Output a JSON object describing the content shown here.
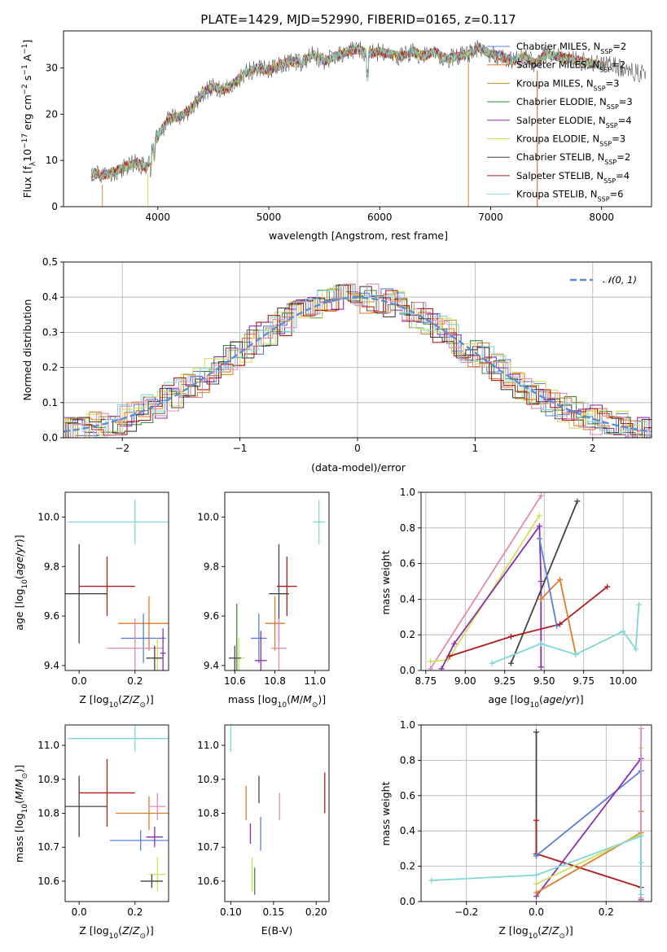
{
  "colors": {
    "chabrier_miles": "#5b7fd8",
    "salpeter_miles": "#e07b2a",
    "kroupa_miles": "#d98a2a",
    "chabrier_elodie": "#3f8a3f",
    "salpeter_elodie": "#8a2fb0",
    "kroupa_elodie": "#cde25a",
    "chabrier_stelib": "#444444",
    "salpeter_stelib": "#b01d1d",
    "kroupa_stelib": "#7fd8d8",
    "pink": "#e08ab8",
    "normal": "#5a8fd6"
  },
  "chart_data": [
    {
      "id": "spectrum",
      "type": "line",
      "title": "PLATE=1429, MJD=52990, FIBERID=0165, z=0.117",
      "xlabel": "wavelength [Angstrom, rest frame]",
      "ylabel": "Flux [fλ10⁻¹⁷ erg cm⁻² s⁻¹ A⁻¹]",
      "xlim": [
        3150,
        8450
      ],
      "ylim": [
        0,
        38
      ],
      "xticks": [
        4000,
        5000,
        6000,
        7000,
        8000
      ],
      "yticks": [
        0,
        10,
        20,
        30
      ],
      "grid": false,
      "legend_position": "upper-right",
      "continuum_x": [
        3400,
        3500,
        3600,
        3700,
        3800,
        3900,
        4000,
        4100,
        4200,
        4300,
        4400,
        4500,
        4600,
        4700,
        4800,
        4900,
        5000,
        5100,
        5200,
        5300,
        5400,
        5500,
        5600,
        5700,
        5800,
        5900,
        6000,
        6100,
        6200,
        6300,
        6400,
        6500,
        6600,
        6700,
        6800,
        6900,
        7000,
        7100,
        7200,
        7300,
        7400,
        7500,
        7600,
        7700,
        7800,
        7900,
        8000,
        8100,
        8200,
        8300,
        8400
      ],
      "continuum_y": [
        7.5,
        6.8,
        7.5,
        8.5,
        9.5,
        8.5,
        15.5,
        19.0,
        19.5,
        21.0,
        24.5,
        26.0,
        25.0,
        27.0,
        29.0,
        30.0,
        29.5,
        30.5,
        31.5,
        31.0,
        33.0,
        31.5,
        32.5,
        33.5,
        34.0,
        33.0,
        33.5,
        33.0,
        32.5,
        33.5,
        32.5,
        33.5,
        32.0,
        32.5,
        33.0,
        34.5,
        33.0,
        32.5,
        31.5,
        32.5,
        31.0,
        33.0,
        32.5,
        32.0,
        31.5,
        31.0,
        30.5,
        30.5,
        29.5,
        29.0,
        29.0
      ],
      "series": [
        {
          "name": "Chabrier MILES, N_SSP=2",
          "label_main": "Chabrier MILES, N",
          "label_sub": "SSP",
          "label_tail": "=2",
          "color": "#5b7fd8"
        },
        {
          "name": "Salpeter MILES, N_SSP=2",
          "label_main": "Salpeter MILES, N",
          "label_sub": "SSP",
          "label_tail": "=2",
          "color": "#e07b2a"
        },
        {
          "name": "Kroupa MILES, N_SSP=3",
          "label_main": "Kroupa MILES, N",
          "label_sub": "SSP",
          "label_tail": "=3",
          "color": "#d98a2a"
        },
        {
          "name": "Chabrier ELODIE, N_SSP=3",
          "label_main": "Chabrier ELODIE, N",
          "label_sub": "SSP",
          "label_tail": "=3",
          "color": "#3f8a3f"
        },
        {
          "name": "Salpeter ELODIE, N_SSP=4",
          "label_main": "Salpeter ELODIE, N",
          "label_sub": "SSP",
          "label_tail": "=4",
          "color": "#8a2fb0"
        },
        {
          "name": "Kroupa ELODIE, N_SSP=3",
          "label_main": "Kroupa ELODIE, N",
          "label_sub": "SSP",
          "label_tail": "=3",
          "color": "#cde25a"
        },
        {
          "name": "Chabrier STELIB, N_SSP=2",
          "label_main": "Chabrier STELIB, N",
          "label_sub": "SSP",
          "label_tail": "=2",
          "color": "#444444"
        },
        {
          "name": "Salpeter STELIB, N_SSP=4",
          "label_main": "Salpeter STELIB, N",
          "label_sub": "SSP",
          "label_tail": "=4",
          "color": "#b01d1d"
        },
        {
          "name": "Kroupa STELIB, N_SSP=6",
          "label_main": "Kroupa STELIB, N",
          "label_sub": "SSP",
          "label_tail": "=6",
          "color": "#7fd8d8"
        }
      ]
    },
    {
      "id": "residuals",
      "type": "line",
      "xlabel": "(data-model)/error",
      "ylabel": "Normed distribution",
      "xlim": [
        -2.5,
        2.5
      ],
      "ylim": [
        0,
        0.5
      ],
      "xticks": [
        -2,
        -1,
        0,
        1,
        2
      ],
      "yticks": [
        0.0,
        0.1,
        0.2,
        0.3,
        0.4,
        0.5
      ],
      "grid": true,
      "legend_position": "upper-right",
      "legend": "𝒩(0, 1)",
      "normal_curve": {
        "mean": 0,
        "sigma": 1,
        "style": "dashed"
      },
      "bin_width": 0.1
    },
    {
      "id": "age-vs-z",
      "type": "scatter",
      "xlabel": "Z [log₁₀(Z/Z⊙)]",
      "ylabel": "age  [log₁₀(age/yr)]",
      "xlim": [
        -0.05,
        0.32
      ],
      "ylim": [
        9.38,
        10.1
      ],
      "xticks": [
        0.0,
        0.2
      ],
      "yticks": [
        9.4,
        9.6,
        9.8,
        10.0
      ],
      "grid": false,
      "points": [
        {
          "x": 0.2,
          "y": 9.98,
          "xerr": 0.24,
          "yerr": 0.09,
          "color": "#7fd8d8"
        },
        {
          "x": 0.0,
          "y": 9.69,
          "xerr": 0.1,
          "yerr": 0.2,
          "color": "#444444"
        },
        {
          "x": 0.1,
          "y": 9.72,
          "xerr": 0.1,
          "yerr": 0.12,
          "color": "#b01d1d"
        },
        {
          "x": 0.25,
          "y": 9.57,
          "xerr": 0.11,
          "yerr": 0.11,
          "color": "#e07b2a"
        },
        {
          "x": 0.23,
          "y": 9.51,
          "xerr": 0.08,
          "yerr": 0.1,
          "color": "#5b7fd8"
        },
        {
          "x": 0.2,
          "y": 9.47,
          "xerr": 0.1,
          "yerr": 0.12,
          "color": "#e08ab8"
        },
        {
          "x": 0.3,
          "y": 9.45,
          "xerr": 0.01,
          "yerr": 0.1,
          "color": "#8a2fb0"
        },
        {
          "x": 0.28,
          "y": 9.43,
          "xerr": 0.02,
          "yerr": 0.08,
          "color": "#cde25a"
        },
        {
          "x": 0.27,
          "y": 9.43,
          "xerr": 0.03,
          "yerr": 0.05,
          "color": "#444444"
        }
      ]
    },
    {
      "id": "age-vs-mass",
      "type": "scatter",
      "xlabel": "mass [log₁₀(M/M⊙)]",
      "xlim": [
        10.55,
        11.07
      ],
      "ylim": [
        9.38,
        10.1
      ],
      "xticks": [
        10.6,
        10.8,
        11.0
      ],
      "yticks": [
        9.4,
        9.6,
        9.8,
        10.0
      ],
      "grid": false,
      "points": [
        {
          "x": 11.02,
          "y": 9.98,
          "xerr": 0.03,
          "yerr": 0.09,
          "color": "#7fd8d8"
        },
        {
          "x": 10.82,
          "y": 9.69,
          "xerr": 0.05,
          "yerr": 0.2,
          "color": "#444444"
        },
        {
          "x": 10.86,
          "y": 9.72,
          "xerr": 0.05,
          "yerr": 0.12,
          "color": "#b01d1d"
        },
        {
          "x": 10.8,
          "y": 9.57,
          "xerr": 0.05,
          "yerr": 0.11,
          "color": "#e07b2a"
        },
        {
          "x": 10.72,
          "y": 9.51,
          "xerr": 0.04,
          "yerr": 0.1,
          "color": "#5b7fd8"
        },
        {
          "x": 10.82,
          "y": 9.47,
          "xerr": 0.04,
          "yerr": 0.12,
          "color": "#e08ab8"
        },
        {
          "x": 10.73,
          "y": 9.42,
          "xerr": 0.03,
          "yerr": 0.12,
          "color": "#8a2fb0"
        },
        {
          "x": 10.62,
          "y": 9.43,
          "xerr": 0.03,
          "yerr": 0.08,
          "color": "#cde25a"
        },
        {
          "x": 10.6,
          "y": 9.43,
          "xerr": 0.03,
          "yerr": 0.05,
          "color": "#444444"
        },
        {
          "x": 10.61,
          "y": 9.43,
          "xerr": 0.0,
          "yerr": 0.22,
          "color": "#3f8a3f"
        }
      ]
    },
    {
      "id": "mass-weight-vs-age",
      "type": "line",
      "xlabel": "age  [log₁₀(age/yr)]",
      "ylabel": "mass weight",
      "xlim": [
        8.72,
        10.18
      ],
      "ylim": [
        0,
        1
      ],
      "xticks": [
        8.75,
        9.0,
        9.25,
        9.5,
        9.75,
        10.0
      ],
      "yticks": [
        0.0,
        0.2,
        0.4,
        0.6,
        0.8,
        1.0
      ],
      "grid": true,
      "series": [
        {
          "color": "#e08ab8",
          "x": [
            8.78,
            9.48
          ],
          "y": [
            0.01,
            0.98
          ]
        },
        {
          "color": "#cde25a",
          "x": [
            8.78,
            8.89,
            9.47
          ],
          "y": [
            0.05,
            0.06,
            0.87
          ]
        },
        {
          "color": "#8a2fb0",
          "x": [
            8.85,
            8.93,
            9.47,
            9.48,
            9.48
          ],
          "y": [
            0.01,
            0.15,
            0.81,
            0.5,
            0.02
          ]
        },
        {
          "color": "#444444",
          "x": [
            9.29,
            9.71
          ],
          "y": [
            0.04,
            0.95
          ]
        },
        {
          "color": "#b01d1d",
          "x": [
            8.9,
            9.29,
            9.6,
            9.9
          ],
          "y": [
            0.08,
            0.19,
            0.26,
            0.47
          ]
        },
        {
          "color": "#e07b2a",
          "x": [
            9.48,
            9.6,
            9.7
          ],
          "y": [
            0.4,
            0.51,
            0.09
          ]
        },
        {
          "color": "#5b7fd8",
          "x": [
            9.47,
            9.58
          ],
          "y": [
            0.74,
            0.25
          ]
        },
        {
          "color": "#7fd8d8",
          "x": [
            9.17,
            9.48,
            9.7,
            10.0,
            10.08,
            10.1
          ],
          "y": [
            0.04,
            0.15,
            0.09,
            0.22,
            0.12,
            0.37
          ]
        }
      ]
    },
    {
      "id": "mass-vs-z",
      "type": "scatter",
      "xlabel": "Z [log₁₀(Z/Z⊙)]",
      "ylabel": "mass [log₁₀(M/M⊙)]",
      "xlim": [
        -0.05,
        0.32
      ],
      "ylim": [
        10.54,
        11.06
      ],
      "xticks": [
        0.0,
        0.2
      ],
      "yticks": [
        10.6,
        10.7,
        10.8,
        10.9,
        11.0
      ],
      "grid": false,
      "points": [
        {
          "x": 0.2,
          "y": 11.02,
          "xerr": 0.24,
          "yerr": 0.04,
          "color": "#7fd8d8"
        },
        {
          "x": 0.0,
          "y": 10.82,
          "xerr": 0.1,
          "yerr": 0.09,
          "color": "#444444"
        },
        {
          "x": 0.1,
          "y": 10.86,
          "xerr": 0.1,
          "yerr": 0.1,
          "color": "#b01d1d"
        },
        {
          "x": 0.25,
          "y": 10.8,
          "xerr": 0.12,
          "yerr": 0.05,
          "color": "#e07b2a"
        },
        {
          "x": 0.22,
          "y": 10.72,
          "xerr": 0.11,
          "yerr": 0.03,
          "color": "#5b7fd8"
        },
        {
          "x": 0.28,
          "y": 10.82,
          "xerr": 0.03,
          "yerr": 0.04,
          "color": "#e08ab8"
        },
        {
          "x": 0.27,
          "y": 10.73,
          "xerr": 0.03,
          "yerr": 0.03,
          "color": "#8a2fb0"
        },
        {
          "x": 0.28,
          "y": 10.62,
          "xerr": 0.03,
          "yerr": 0.05,
          "color": "#cde25a"
        },
        {
          "x": 0.26,
          "y": 10.6,
          "xerr": 0.04,
          "yerr": 0.02,
          "color": "#444444"
        }
      ]
    },
    {
      "id": "mass-vs-ebv",
      "type": "scatter",
      "xlabel": "E(B-V)",
      "xlim": [
        0.093,
        0.215
      ],
      "ylim": [
        10.54,
        11.06
      ],
      "xticks": [
        0.1,
        0.15,
        0.2
      ],
      "yticks": [
        10.6,
        10.7,
        10.8,
        10.9,
        11.0
      ],
      "grid": false,
      "points": [
        {
          "x": 0.1,
          "y": 11.02,
          "xerr": 0.0,
          "yerr": 0.04,
          "color": "#7fd8d8"
        },
        {
          "x": 0.118,
          "y": 10.83,
          "xerr": 0.0,
          "yerr": 0.05,
          "color": "#e07b2a"
        },
        {
          "x": 0.133,
          "y": 10.87,
          "xerr": 0.0,
          "yerr": 0.04,
          "color": "#444444"
        },
        {
          "x": 0.157,
          "y": 10.82,
          "xerr": 0.0,
          "yerr": 0.04,
          "color": "#e08ab8"
        },
        {
          "x": 0.21,
          "y": 10.86,
          "xerr": 0.0,
          "yerr": 0.06,
          "color": "#b01d1d"
        },
        {
          "x": 0.135,
          "y": 10.74,
          "xerr": 0.0,
          "yerr": 0.05,
          "color": "#5b7fd8"
        },
        {
          "x": 0.123,
          "y": 10.74,
          "xerr": 0.0,
          "yerr": 0.03,
          "color": "#8a2fb0"
        },
        {
          "x": 0.125,
          "y": 10.62,
          "xerr": 0.0,
          "yerr": 0.05,
          "color": "#cde25a"
        },
        {
          "x": 0.128,
          "y": 10.6,
          "xerr": 0.0,
          "yerr": 0.04,
          "color": "#3f8a3f"
        }
      ]
    },
    {
      "id": "mass-weight-vs-z",
      "type": "line",
      "xlabel": "Z [log₁₀(Z/Z⊙)]",
      "ylabel": "mass weight",
      "xlim": [
        -0.33,
        0.33
      ],
      "ylim": [
        0,
        1
      ],
      "xticks": [
        -0.2,
        0.0,
        0.2
      ],
      "yticks": [
        0.0,
        0.2,
        0.4,
        0.6,
        0.8,
        1.0
      ],
      "grid": true,
      "series": [
        {
          "color": "#444444",
          "x": [
            0.0,
            0.0
          ],
          "y": [
            0.26,
            0.96
          ]
        },
        {
          "color": "#b01d1d",
          "x": [
            0.0,
            0.0,
            0.3
          ],
          "y": [
            0.46,
            0.27,
            0.08
          ]
        },
        {
          "color": "#5b7fd8",
          "x": [
            0.0,
            0.3
          ],
          "y": [
            0.26,
            0.74
          ]
        },
        {
          "color": "#8a2fb0",
          "x": [
            0.0,
            0.3,
            0.3
          ],
          "y": [
            0.03,
            0.81,
            0.01
          ]
        },
        {
          "color": "#e07b2a",
          "x": [
            0.0,
            0.3,
            0.3
          ],
          "y": [
            0.05,
            0.39,
            0.51
          ]
        },
        {
          "color": "#cde25a",
          "x": [
            0.0,
            0.3,
            0.3
          ],
          "y": [
            0.1,
            0.38,
            0.87
          ]
        },
        {
          "color": "#e08ab8",
          "x": [
            0.3,
            0.3
          ],
          "y": [
            0.02,
            0.98
          ]
        },
        {
          "color": "#7fd8d8",
          "x": [
            -0.3,
            0.0,
            0.3,
            0.3,
            0.3
          ],
          "y": [
            0.12,
            0.15,
            0.37,
            0.22,
            0.04
          ]
        }
      ]
    }
  ]
}
